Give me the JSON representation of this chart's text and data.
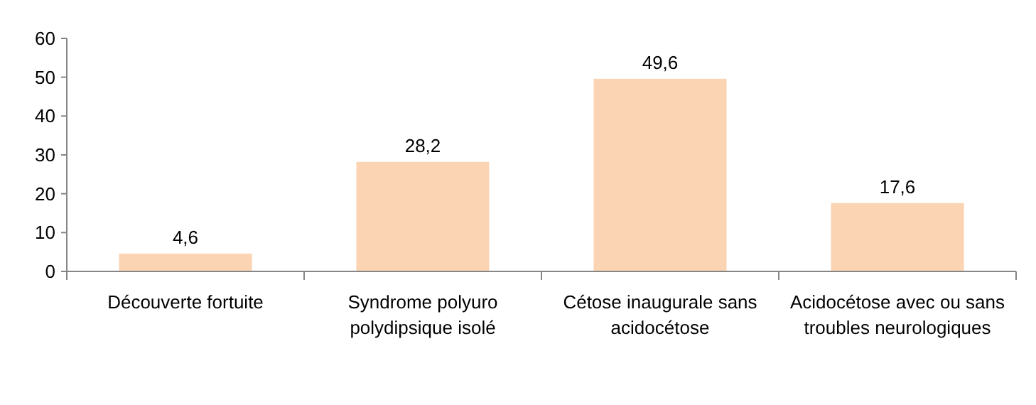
{
  "chart_data": {
    "type": "bar",
    "categories": [
      "Découverte fortuite",
      "Syndrome polyuro polydipsique isolé",
      "Cétose inaugurale sans acidocétose",
      "Acidocétose avec ou sans troubles neurologiques"
    ],
    "values": [
      4.6,
      28.2,
      49.6,
      17.6
    ],
    "value_labels": [
      "4,6",
      "28,2",
      "49,6",
      "17,6"
    ],
    "color": "#fbd4b4",
    "ylim": [
      0,
      60
    ],
    "yticks": [
      0,
      10,
      20,
      30,
      40,
      50,
      60
    ],
    "grid": false
  }
}
